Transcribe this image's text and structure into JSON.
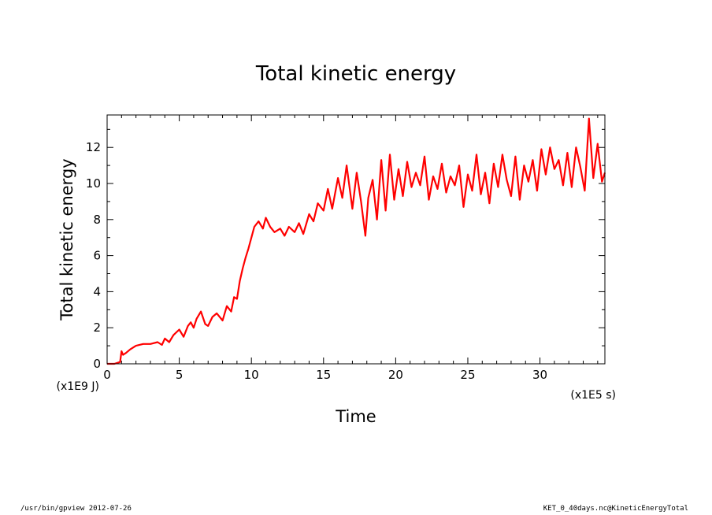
{
  "chart_data": {
    "type": "line",
    "title": "Total kinetic energy",
    "xlabel": "Time",
    "ylabel": "Total kinetic energy",
    "x_unit": "(x1E5 s)",
    "y_unit": "(x1E9 J)",
    "xlim": [
      0,
      34.5
    ],
    "ylim": [
      0,
      13.8
    ],
    "xticks": [
      0,
      5,
      10,
      15,
      20,
      25,
      30
    ],
    "yticks": [
      0,
      2,
      4,
      6,
      8,
      10,
      12
    ],
    "grid": false,
    "line_color": "#ff0000",
    "x": [
      0,
      0.5,
      0.9,
      1.0,
      1.1,
      1.3,
      1.6,
      2.0,
      2.5,
      3.0,
      3.5,
      3.8,
      4.0,
      4.3,
      4.6,
      5.0,
      5.3,
      5.6,
      5.8,
      6.0,
      6.2,
      6.5,
      6.8,
      7.0,
      7.3,
      7.6,
      8.0,
      8.3,
      8.6,
      8.8,
      9.0,
      9.2,
      9.4,
      9.6,
      9.8,
      10.0,
      10.2,
      10.5,
      10.8,
      11.0,
      11.3,
      11.6,
      12.0,
      12.3,
      12.6,
      13.0,
      13.3,
      13.6,
      14.0,
      14.3,
      14.6,
      15.0,
      15.3,
      15.6,
      16.0,
      16.3,
      16.6,
      17.0,
      17.3,
      17.6,
      17.9,
      18.1,
      18.4,
      18.7,
      19.0,
      19.3,
      19.6,
      19.9,
      20.2,
      20.5,
      20.8,
      21.1,
      21.4,
      21.7,
      22.0,
      22.3,
      22.6,
      22.9,
      23.2,
      23.5,
      23.8,
      24.1,
      24.4,
      24.7,
      25.0,
      25.3,
      25.6,
      25.9,
      26.2,
      26.5,
      26.8,
      27.1,
      27.4,
      27.7,
      28.0,
      28.3,
      28.6,
      28.9,
      29.2,
      29.5,
      29.8,
      30.1,
      30.4,
      30.7,
      31.0,
      31.3,
      31.6,
      31.9,
      32.2,
      32.5,
      32.8,
      33.1,
      33.4,
      33.7,
      34.0,
      34.3,
      34.5
    ],
    "values": [
      0,
      0,
      0.1,
      0.7,
      0.5,
      0.6,
      0.8,
      1.0,
      1.1,
      1.1,
      1.2,
      1.05,
      1.4,
      1.2,
      1.6,
      1.9,
      1.5,
      2.1,
      2.3,
      2.0,
      2.5,
      2.9,
      2.2,
      2.1,
      2.6,
      2.8,
      2.4,
      3.2,
      2.9,
      3.7,
      3.6,
      4.6,
      5.3,
      5.9,
      6.4,
      7.0,
      7.6,
      7.9,
      7.5,
      8.1,
      7.6,
      7.3,
      7.5,
      7.1,
      7.6,
      7.3,
      7.8,
      7.2,
      8.3,
      7.9,
      8.9,
      8.5,
      9.7,
      8.6,
      10.3,
      9.2,
      11.0,
      8.6,
      10.6,
      9.0,
      7.1,
      9.2,
      10.2,
      8.0,
      11.3,
      8.5,
      11.6,
      9.1,
      10.8,
      9.3,
      11.2,
      9.8,
      10.6,
      9.9,
      11.5,
      9.1,
      10.4,
      9.7,
      11.1,
      9.5,
      10.4,
      9.9,
      11.0,
      8.7,
      10.5,
      9.6,
      11.6,
      9.4,
      10.6,
      8.9,
      11.1,
      9.8,
      11.6,
      10.2,
      9.3,
      11.5,
      9.1,
      11.0,
      10.1,
      11.3,
      9.6,
      11.9,
      10.5,
      12.0,
      10.8,
      11.3,
      9.9,
      11.7,
      9.8,
      12.0,
      10.9,
      9.6,
      13.6,
      10.3,
      12.2,
      10.1,
      10.6
    ]
  },
  "footer": {
    "left": "/usr/bin/gpview  2012-07-26",
    "right": "KET_0_40days.nc@KineticEnergyTotal"
  }
}
